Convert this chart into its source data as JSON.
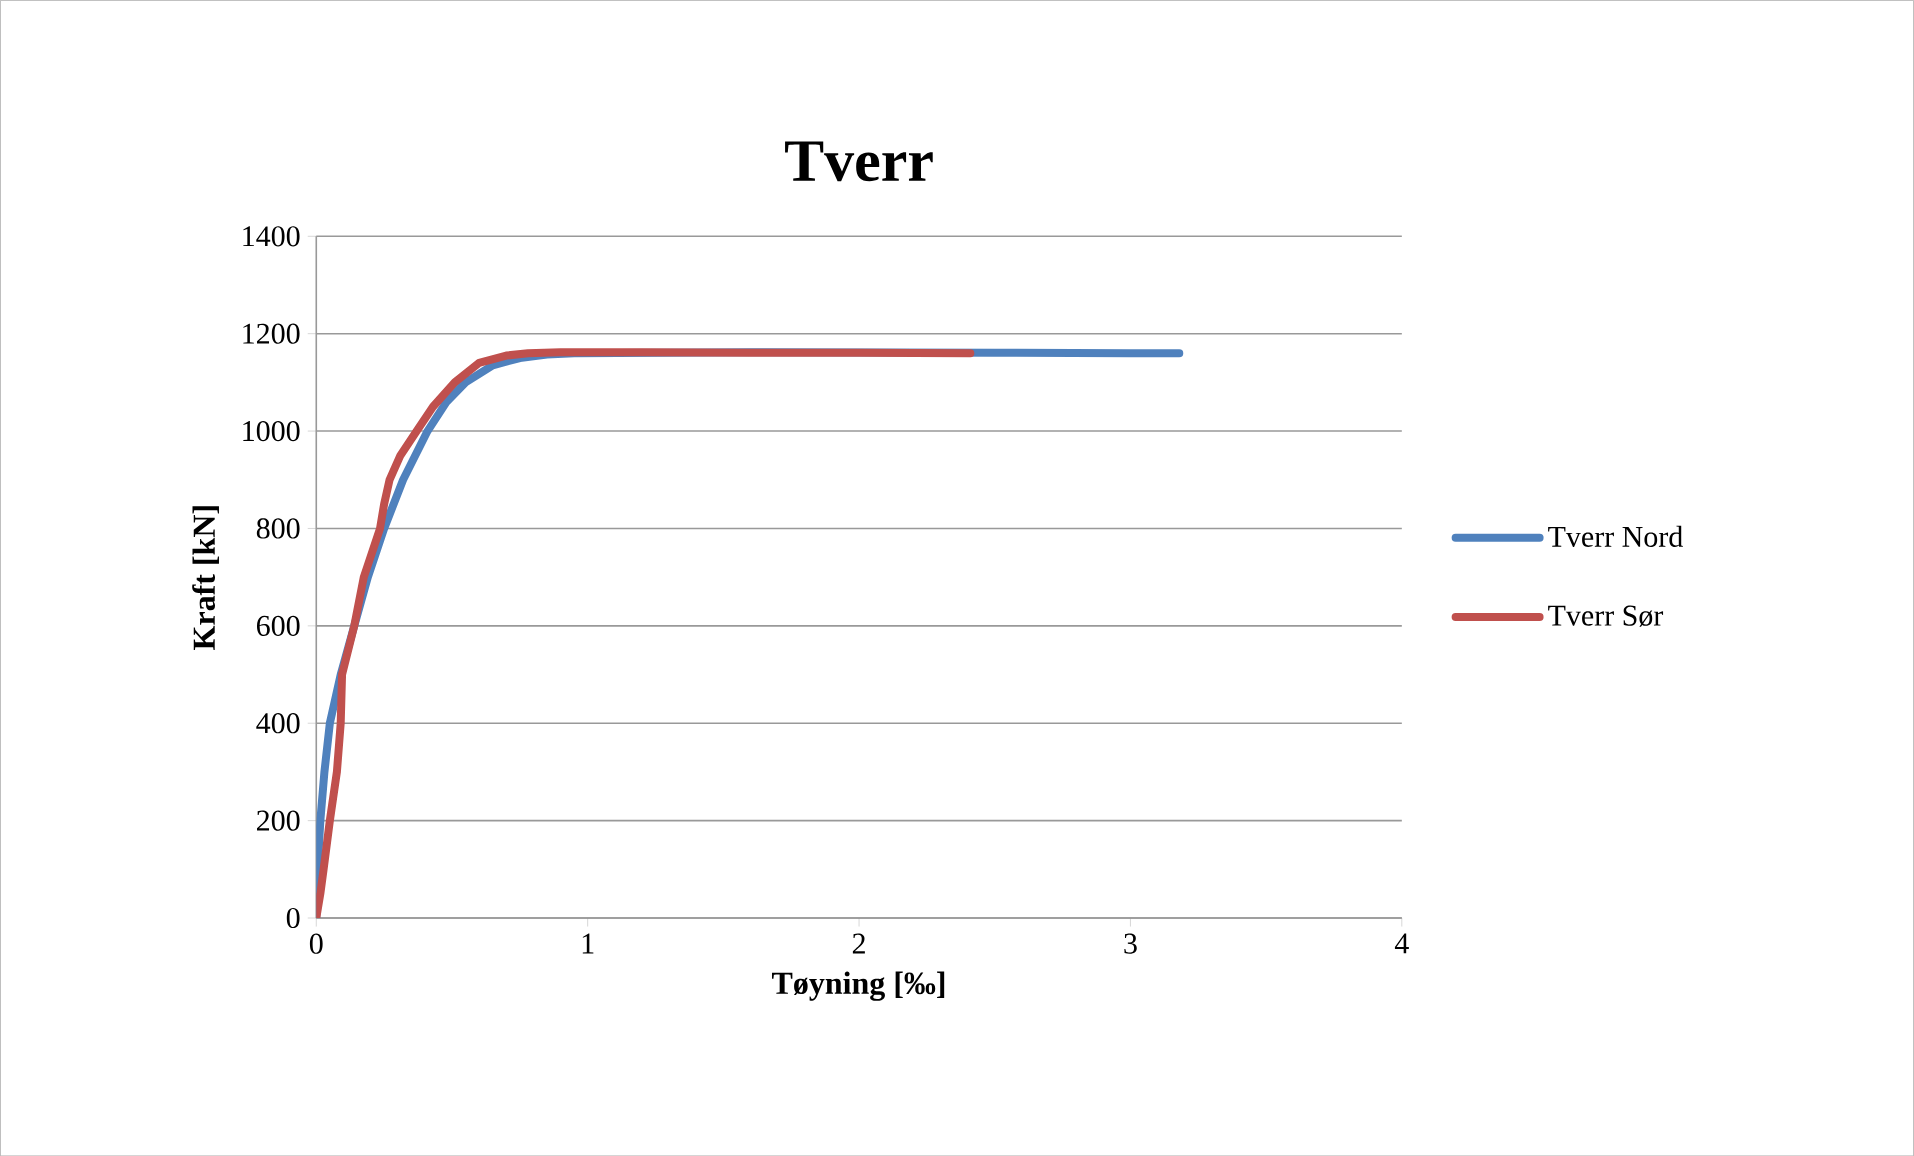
{
  "chart_data": {
    "type": "line",
    "title": "Tverr",
    "xlabel": "Tøyning [‰]",
    "ylabel": "Kraft [kN]",
    "xlim": [
      0,
      4
    ],
    "xticks": [
      0,
      1,
      2,
      3,
      4
    ],
    "ylim": [
      0,
      1400
    ],
    "yticks": [
      0,
      200,
      400,
      600,
      800,
      1000,
      1200,
      1400
    ],
    "grid": "y",
    "legend": "right",
    "marker": "none",
    "line_style": "solid",
    "series": [
      {
        "name": "Tverr Nord",
        "color": "#4f81bd",
        "x": [
          0,
          0.005,
          0.015,
          0.03,
          0.05,
          0.09,
          0.14,
          0.19,
          0.25,
          0.32,
          0.41,
          0.48,
          0.55,
          0.65,
          0.75,
          0.85,
          0.95,
          1.6,
          2.5,
          3.0,
          3.18
        ],
        "values": [
          0,
          100,
          200,
          300,
          400,
          500,
          600,
          700,
          800,
          900,
          1000,
          1060,
          1100,
          1135,
          1150,
          1157,
          1160,
          1162,
          1161,
          1160,
          1160
        ]
      },
      {
        "name": "Tverr Sør",
        "color": "#c0504d",
        "x": [
          0,
          0.015,
          0.027,
          0.05,
          0.076,
          0.09,
          0.095,
          0.14,
          0.175,
          0.235,
          0.25,
          0.27,
          0.31,
          0.37,
          0.43,
          0.51,
          0.6,
          0.7,
          0.78,
          0.9,
          1.2,
          1.6,
          2.0,
          2.41
        ],
        "values": [
          0,
          50,
          100,
          200,
          300,
          400,
          500,
          600,
          700,
          800,
          850,
          900,
          950,
          1000,
          1050,
          1100,
          1140,
          1155,
          1160,
          1162,
          1162,
          1161,
          1161,
          1160
        ]
      }
    ]
  }
}
